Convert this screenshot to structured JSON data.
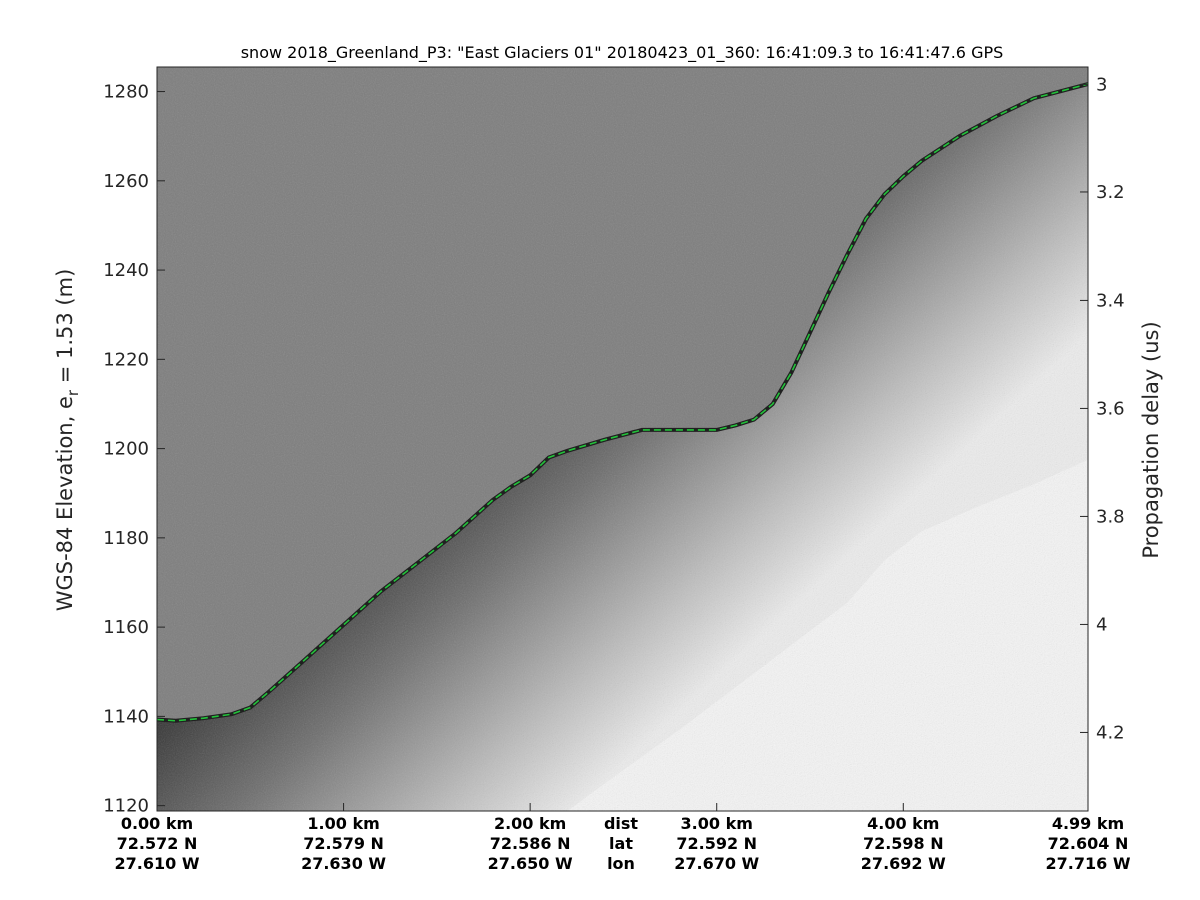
{
  "chart_data": {
    "type": "heatmap",
    "title": "snow 2018_Greenland_P3: \"East Glaciers 01\"  20180423_01_360: 16:41:09.3 to 16:41:47.6 GPS",
    "ylabel_left": "WGS-84 Elevation, e",
    "ylabel_left_sub": "r",
    "ylabel_left_suffix": " = 1.53 (m)",
    "ylabel_right": "Propagation delay (us)",
    "ylim_left": [
      1118.8,
      1285.5
    ],
    "left_ticks": [
      "1120",
      "1140",
      "1160",
      "1180",
      "1200",
      "1220",
      "1240",
      "1260",
      "1280"
    ],
    "right_ticks": [
      "3",
      "3.2",
      "3.4",
      "3.6",
      "3.8",
      "4",
      "4.2"
    ],
    "right_tick_elev": [
      1281.6,
      1257.5,
      1233.2,
      1209.0,
      1184.8,
      1160.6,
      1136.4
    ],
    "xlim_km": [
      0,
      4.99
    ],
    "x_columns": [
      {
        "km": 0.0,
        "dist": "0.00 km",
        "lat": "72.572 N",
        "lon": "27.610 W"
      },
      {
        "km": 1.0,
        "dist": "1.00 km",
        "lat": "72.579 N",
        "lon": "27.630 W"
      },
      {
        "km": 2.0,
        "dist": "2.00 km",
        "lat": "72.586 N",
        "lon": "27.650 W"
      },
      {
        "km": 3.0,
        "dist": "3.00 km",
        "lat": "72.592 N",
        "lon": "27.670 W"
      },
      {
        "km": 4.0,
        "dist": "4.00 km",
        "lat": "72.598 N",
        "lon": "27.692 W"
      },
      {
        "km": 4.99,
        "dist": "4.99 km",
        "lat": "72.604 N",
        "lon": "27.716 W"
      }
    ],
    "row_labels": {
      "dist": "dist",
      "lat": "lat",
      "lon": "lon"
    },
    "surface_series": {
      "x_km": [
        0.0,
        0.1,
        0.25,
        0.4,
        0.5,
        0.6,
        0.8,
        1.0,
        1.2,
        1.4,
        1.6,
        1.8,
        1.9,
        2.0,
        2.1,
        2.2,
        2.4,
        2.6,
        2.8,
        3.0,
        3.1,
        3.2,
        3.3,
        3.4,
        3.5,
        3.6,
        3.7,
        3.8,
        3.9,
        4.0,
        4.1,
        4.3,
        4.5,
        4.7,
        4.99
      ],
      "elev_m": [
        1139.3,
        1139.0,
        1139.6,
        1140.5,
        1142.0,
        1145.5,
        1153.0,
        1160.5,
        1168.0,
        1174.5,
        1181.0,
        1188.5,
        1191.5,
        1194.0,
        1198.0,
        1199.5,
        1202.0,
        1204.2,
        1204.2,
        1204.2,
        1205.2,
        1206.5,
        1210.0,
        1217.0,
        1226.0,
        1235.0,
        1243.5,
        1251.5,
        1257.0,
        1261.0,
        1264.5,
        1270.0,
        1274.5,
        1278.5,
        1281.7
      ]
    },
    "bottom_series": {
      "x_km": [
        2.2,
        2.5,
        2.8,
        3.1,
        3.4,
        3.7,
        3.9,
        4.1,
        4.4,
        4.7,
        4.99
      ],
      "elev_m": [
        1118.8,
        1128.0,
        1137.0,
        1146.5,
        1156.0,
        1165.5,
        1175.0,
        1181.5,
        1187.0,
        1192.0,
        1197.5
      ]
    },
    "colors": {
      "background": "#7d7d7d",
      "surface_line": "#22c33a",
      "bright_return": "#f4f4f4"
    },
    "grid": false
  }
}
